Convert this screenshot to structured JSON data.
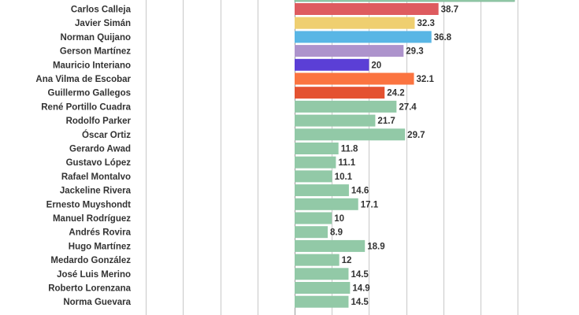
{
  "chart_data": {
    "type": "bar",
    "orientation": "horizontal",
    "grid": true,
    "categories": [
      "Carlos Calleja",
      "Javier Simán",
      "Norman Quijano",
      "Gerson Martínez",
      "Mauricio Interiano",
      "Ana Vilma de Escobar",
      "Guillermo Gallegos",
      "René Portillo Cuadra",
      "Rodolfo Parker",
      "Óscar Ortiz",
      "Gerardo Awad",
      "Gustavo López",
      "Rafael Montalvo",
      "Jackeline Rivera",
      "Ernesto Muyshondt",
      "Manuel Rodríguez",
      "Andrés Rovira",
      "Hugo Martínez",
      "Medardo González",
      "José Luis Merino",
      "Roberto Lorenzana",
      "Norma Guevara"
    ],
    "values": [
      38.7,
      32.3,
      36.8,
      29.3,
      20,
      32.1,
      24.2,
      27.4,
      21.7,
      29.7,
      11.8,
      11.1,
      10.1,
      14.6,
      17.1,
      10,
      8.9,
      18.9,
      12,
      14.5,
      14.9,
      14.5
    ],
    "value_labels": [
      "38.7",
      "32.3",
      "36.8",
      "29.3",
      "20",
      "32.1",
      "24.2",
      "27.4",
      "21.7",
      "29.7",
      "11.8",
      "11.1",
      "10.1",
      "14.6",
      "17.1",
      "10",
      "8.9",
      "18.9",
      "12",
      "14.5",
      "14.9",
      "14.5"
    ],
    "colors": [
      "#de5b5f",
      "#efcf70",
      "#59b6e5",
      "#ad93cc",
      "#5b3fd6",
      "#fb7440",
      "#e45231",
      "#92c9a7",
      "#92c9a7",
      "#92c9a7",
      "#92c9a7",
      "#92c9a7",
      "#92c9a7",
      "#92c9a7",
      "#92c9a7",
      "#92c9a7",
      "#92c9a7",
      "#92c9a7",
      "#92c9a7",
      "#92c9a7",
      "#92c9a7",
      "#92c9a7"
    ],
    "default_color": "#92c9a7",
    "xlim": [
      -40,
      60
    ],
    "gridlines": [
      -40,
      -30,
      -20,
      -10,
      0,
      10,
      20,
      30,
      40,
      50,
      60
    ]
  }
}
